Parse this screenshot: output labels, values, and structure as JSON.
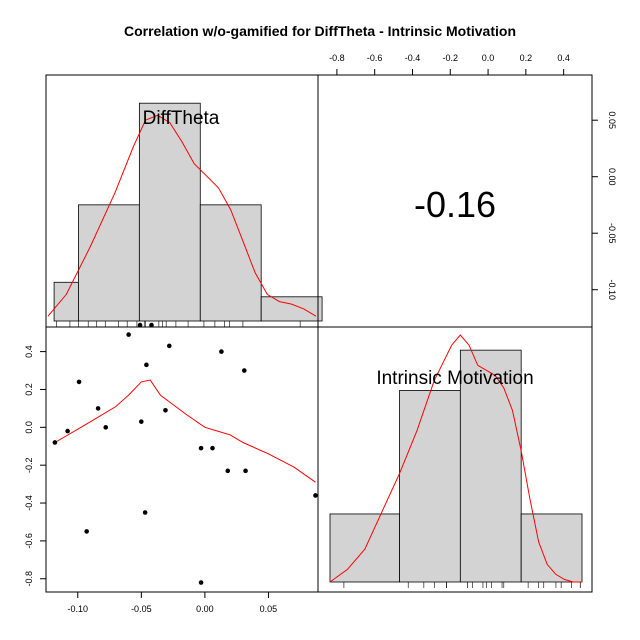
{
  "title": "Correlation w/o-gamified for DiffTheta - Intrinsic Motivation",
  "colors": {
    "bar_fill": "#d3d3d3",
    "density": "#ff0000",
    "frame": "#000000"
  },
  "chart_data": [
    {
      "panel": "top-left",
      "type": "histogram",
      "variable": "DiffTheta",
      "bins": [
        {
          "from": -0.12,
          "to": -0.1,
          "density": 0.16
        },
        {
          "from": -0.1,
          "to": -0.05,
          "density": 0.48
        },
        {
          "from": -0.05,
          "to": 0.0,
          "density": 0.9
        },
        {
          "from": 0.0,
          "to": 0.05,
          "density": 0.48
        },
        {
          "from": 0.05,
          "to": 0.1,
          "density": 0.1
        }
      ],
      "density_curve": {
        "x": [
          -0.125,
          -0.11,
          -0.09,
          -0.07,
          -0.055,
          -0.045,
          -0.035,
          -0.025,
          -0.015,
          -0.005,
          0.005,
          0.015,
          0.025,
          0.035,
          0.045,
          0.055,
          0.065,
          0.075,
          0.085,
          0.095
        ],
        "y": [
          0.02,
          0.11,
          0.31,
          0.53,
          0.72,
          0.83,
          0.85,
          0.82,
          0.74,
          0.65,
          0.6,
          0.55,
          0.46,
          0.33,
          0.2,
          0.11,
          0.08,
          0.07,
          0.05,
          0.02
        ]
      },
      "rug": [
        -0.118,
        -0.107,
        -0.1,
        -0.092,
        -0.085,
        -0.078,
        -0.067,
        -0.06,
        -0.052,
        -0.046,
        -0.045,
        -0.034,
        -0.031,
        -0.028,
        -0.02,
        -0.01,
        0.003,
        0.012,
        0.02,
        0.024,
        0.035,
        0.082
      ]
    },
    {
      "panel": "top-right",
      "type": "correlation",
      "value": "-0.16",
      "x_range": [
        -0.9,
        0.55
      ],
      "x_ticks": [
        -0.8,
        -0.6,
        -0.4,
        -0.2,
        0.0,
        0.2,
        0.4
      ],
      "x_tick_labels": [
        "-0.8",
        "-0.6",
        "-0.4",
        "-0.2",
        "0.0",
        "0.2",
        "0.4"
      ],
      "y_range": [
        -0.133,
        0.09
      ],
      "y_ticks": [
        0.05,
        0.0,
        -0.05,
        -0.1
      ],
      "y_tick_labels": [
        "0.05",
        "0.00",
        "-0.05",
        "-0.10"
      ]
    },
    {
      "panel": "bottom-left",
      "type": "scatter",
      "x_range": [
        -0.125,
        0.089
      ],
      "y_range": [
        -0.87,
        0.53
      ],
      "x_ticks": [
        -0.1,
        -0.05,
        0.0,
        0.05
      ],
      "x_tick_labels": [
        "-0.10",
        "-0.05",
        "0.00",
        "0.05"
      ],
      "y_ticks": [
        0.4,
        0.2,
        0.0,
        -0.2,
        -0.4,
        -0.6,
        -0.8
      ],
      "y_tick_labels": [
        "0.4",
        "0.2",
        "0.0",
        "-0.2",
        "-0.4",
        "-0.6",
        "-0.8"
      ],
      "points": [
        {
          "x": -0.118,
          "y": -0.08
        },
        {
          "x": -0.108,
          "y": -0.02
        },
        {
          "x": -0.099,
          "y": 0.24
        },
        {
          "x": -0.093,
          "y": -0.55
        },
        {
          "x": -0.084,
          "y": 0.1
        },
        {
          "x": -0.078,
          "y": 0.0
        },
        {
          "x": -0.06,
          "y": 0.49
        },
        {
          "x": -0.051,
          "y": 0.54
        },
        {
          "x": -0.05,
          "y": 0.03
        },
        {
          "x": -0.047,
          "y": -0.45
        },
        {
          "x": -0.046,
          "y": 0.33
        },
        {
          "x": -0.042,
          "y": 0.54
        },
        {
          "x": -0.031,
          "y": 0.09
        },
        {
          "x": -0.028,
          "y": 0.43
        },
        {
          "x": -0.003,
          "y": -0.11
        },
        {
          "x": -0.003,
          "y": -0.82
        },
        {
          "x": 0.006,
          "y": -0.11
        },
        {
          "x": 0.013,
          "y": 0.4
        },
        {
          "x": 0.018,
          "y": -0.23
        },
        {
          "x": 0.031,
          "y": 0.3
        },
        {
          "x": 0.032,
          "y": -0.23
        },
        {
          "x": 0.087,
          "y": -0.36
        }
      ],
      "smooth": {
        "x": [
          -0.118,
          -0.1,
          -0.085,
          -0.07,
          -0.06,
          -0.05,
          -0.043,
          -0.035,
          -0.025,
          -0.015,
          0.0,
          0.01,
          0.02,
          0.03,
          0.05,
          0.07,
          0.087
        ],
        "y": [
          -0.08,
          -0.01,
          0.05,
          0.11,
          0.17,
          0.24,
          0.25,
          0.17,
          0.12,
          0.07,
          0.0,
          -0.02,
          -0.04,
          -0.08,
          -0.14,
          -0.21,
          -0.29
        ]
      }
    },
    {
      "panel": "bottom-right",
      "type": "histogram",
      "variable": "Intrinsic Motivation",
      "bins": [
        {
          "from": -0.9,
          "to": -0.5,
          "density": 0.27
        },
        {
          "from": -0.5,
          "to": -0.15,
          "density": 0.76
        },
        {
          "from": -0.15,
          "to": 0.2,
          "density": 0.92
        },
        {
          "from": 0.2,
          "to": 0.55,
          "density": 0.27
        }
      ],
      "density_curve": {
        "x": [
          -0.9,
          -0.8,
          -0.7,
          -0.6,
          -0.5,
          -0.4,
          -0.3,
          -0.2,
          -0.15,
          -0.1,
          -0.05,
          0.0,
          0.05,
          0.1,
          0.15,
          0.2,
          0.25,
          0.3,
          0.35,
          0.4,
          0.45,
          0.5,
          0.55
        ],
        "y": [
          0.0,
          0.05,
          0.13,
          0.28,
          0.43,
          0.6,
          0.8,
          0.94,
          0.98,
          0.94,
          0.86,
          0.84,
          0.82,
          0.77,
          0.68,
          0.52,
          0.33,
          0.16,
          0.07,
          0.03,
          0.01,
          0.0,
          0.0
        ]
      },
      "rug": [
        -0.82,
        -0.45,
        -0.36,
        -0.3,
        -0.23,
        -0.23,
        -0.11,
        -0.11,
        -0.08,
        -0.02,
        0.0,
        0.03,
        0.09,
        0.1,
        0.24,
        0.3,
        0.33,
        0.4,
        0.43,
        0.49,
        0.54,
        0.54
      ]
    }
  ]
}
